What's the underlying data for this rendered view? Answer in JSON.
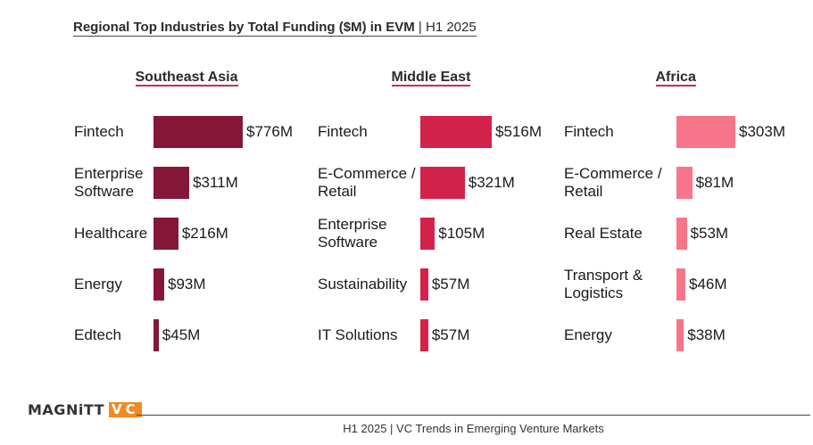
{
  "header": {
    "title_bold": "Regional Top Industries by Total Funding ($M) in EVM",
    "title_sep": " | ",
    "title_period": "H1 2025"
  },
  "footer": {
    "logo_text": "MAGNiTT",
    "logo_badge": "VC",
    "caption": "H1 2025 | VC Trends in Emerging Venture Markets"
  },
  "colors": {
    "southeast_asia": "#841737",
    "middle_east": "#d4234b",
    "africa": "#f77588",
    "region_underline": "#c2304f"
  },
  "chart_data": [
    {
      "type": "bar",
      "orientation": "horizontal",
      "title": "Southeast Asia",
      "categories": [
        "Fintech",
        "Enterprise\nSoftware",
        "Healthcare",
        "Energy",
        "Edtech"
      ],
      "values": [
        776,
        311,
        216,
        93,
        45
      ],
      "labels": [
        "$776M",
        "$311M",
        "$216M",
        "$93M",
        "$45M"
      ],
      "unit": "$M"
    },
    {
      "type": "bar",
      "orientation": "horizontal",
      "title": "Middle East",
      "categories": [
        "Fintech",
        "E-Commerce /\nRetail",
        "Enterprise\nSoftware",
        "Sustainability",
        "IT Solutions"
      ],
      "values": [
        516,
        321,
        105,
        57,
        57
      ],
      "labels": [
        "$516M",
        "$321M",
        "$105M",
        "$57M",
        "$57M"
      ],
      "unit": "$M"
    },
    {
      "type": "bar",
      "orientation": "horizontal",
      "title": "Africa",
      "categories": [
        "Fintech",
        "E-Commerce /\nRetail",
        "Real Estate",
        "Transport &\nLogistics",
        "Energy"
      ],
      "values": [
        303,
        81,
        53,
        46,
        38
      ],
      "labels": [
        "$303M",
        "$81M",
        "$53M",
        "$46M",
        "$38M"
      ],
      "unit": "$M"
    }
  ]
}
